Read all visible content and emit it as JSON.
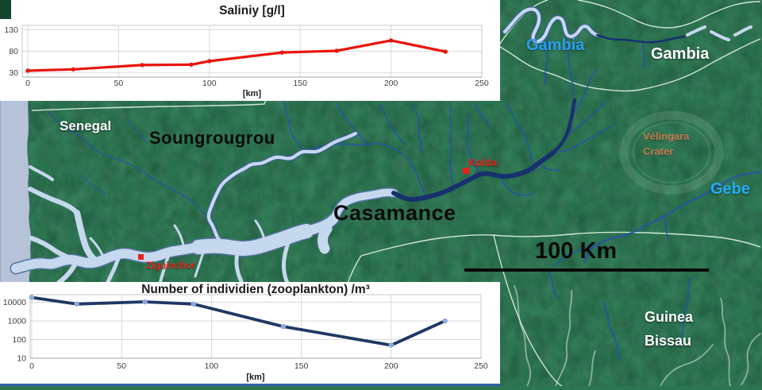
{
  "map": {
    "labels": {
      "senegal": "Senegal",
      "soungrougrou": "Soungrougrou",
      "casamance": "Casamance",
      "gambia_river": "Gambia",
      "gambia_country": "Gambia",
      "velingara_line1": "Vélingara",
      "velingara_line2": "Crater",
      "gebe": "Gebe",
      "guinea_bissau_line1": "Guinea",
      "guinea_bissau_line2": "Bissau",
      "kolda": "Kolda",
      "ziguinchor": "Ziguinchor",
      "scale_bar": "100 Km"
    },
    "colors": {
      "land": "#2b7752",
      "ocean": "#b5c2d8",
      "estuary": "#c6d8ee",
      "river_dark": "#17316e",
      "stream": "#2453a6",
      "border_line": "#e9f5e9",
      "marker_red": "#e8221a",
      "label_blue": "#2a9df0",
      "label_orange": "#c77b50"
    }
  },
  "chart_data": [
    {
      "id": "salinity",
      "type": "line",
      "title": "Saliniy [g/l]",
      "xlabel": "[km]",
      "x": [
        0,
        25,
        63,
        90,
        100,
        140,
        170,
        200,
        230
      ],
      "values": [
        35,
        38,
        48,
        49,
        57,
        77,
        81,
        105,
        79
      ],
      "xticks": [
        0,
        50,
        100,
        150,
        200,
        250
      ],
      "yticks": [
        30,
        80,
        130
      ],
      "yscale": "linear",
      "ylim": [
        20,
        140
      ],
      "xlim": [
        0,
        250
      ],
      "grid": true,
      "legend": "none",
      "line_color": "#e8150d",
      "marker_color": "#e8150d"
    },
    {
      "id": "zooplankton",
      "type": "line",
      "title": "Number of individien (zooplankton) /m³",
      "xlabel": "[km]",
      "x": [
        0,
        25,
        63,
        90,
        140,
        200,
        230
      ],
      "values": [
        18000,
        8000,
        10500,
        8000,
        500,
        50,
        1000
      ],
      "xticks": [
        0,
        50,
        100,
        150,
        200,
        250
      ],
      "yticks": [
        10,
        100,
        1000,
        10000
      ],
      "yscale": "log",
      "ylim": [
        10,
        24000
      ],
      "xlim": [
        0,
        250
      ],
      "grid": true,
      "legend": "none",
      "line_color": "#1f3864",
      "marker_color": "#8faadc"
    }
  ]
}
